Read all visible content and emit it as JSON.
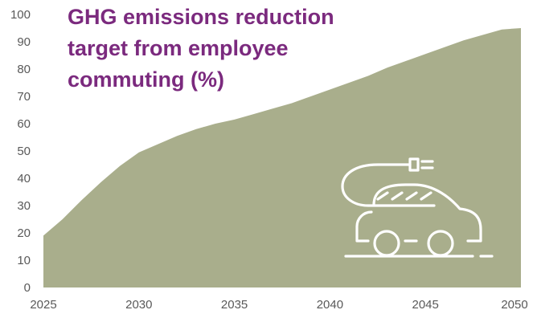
{
  "chart_data": {
    "type": "area",
    "title_lines": [
      "GHG emissions reduction",
      "target from employee",
      "commuting (%)"
    ],
    "x": [
      2025,
      2026,
      2027,
      2028,
      2029,
      2030,
      2031,
      2032,
      2033,
      2034,
      2035,
      2036,
      2037,
      2038,
      2039,
      2040,
      2041,
      2042,
      2043,
      2044,
      2045,
      2046,
      2047,
      2048,
      2049,
      2050
    ],
    "series": [
      {
        "values": [
          19,
          25,
          32,
          38.5,
          44.5,
          49.5,
          52.5,
          55.5,
          58,
          60,
          61.5,
          63.5,
          65.5,
          67.5,
          70,
          72.5,
          75,
          77.5,
          80.5,
          83,
          85.5,
          88,
          90.5,
          92.5,
          94.5,
          95
        ],
        "color": "#a9ae8c"
      }
    ],
    "xticks": [
      2025,
      2030,
      2035,
      2040,
      2045,
      2050
    ],
    "yticks": [
      0,
      10,
      20,
      30,
      40,
      50,
      60,
      70,
      80,
      90,
      100
    ],
    "xlim": [
      2025,
      2050
    ],
    "ylim": [
      0,
      100
    ],
    "grid": false,
    "legend": "none",
    "icon": "electric-car-icon",
    "colors": {
      "title": "#7b2a7e",
      "area": "#a9ae8c",
      "ticks": "#595959",
      "icon": "#ffffff"
    }
  }
}
